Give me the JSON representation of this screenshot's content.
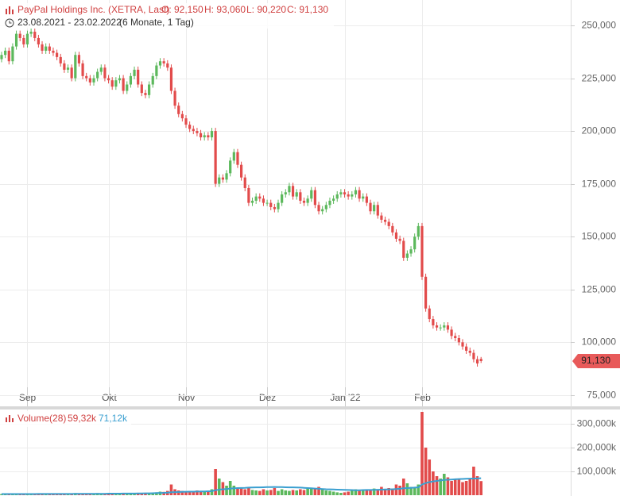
{
  "header": {
    "title": "PayPal Holdings Inc. (XETRA, Last)",
    "open": "O: 92,150",
    "high": "H: 93,060",
    "low": "L: 90,220",
    "close": "C: 91,130",
    "range": "23.08.2021 - 23.02.2022",
    "period": "(6 Monate, 1 Tag)"
  },
  "chart_data": [
    {
      "type": "candlestick",
      "categories": [
        null,
        null,
        null,
        null,
        null,
        null,
        null,
        "Sep",
        null,
        null,
        null,
        null,
        null,
        null,
        null,
        null,
        null,
        null,
        null,
        null,
        null,
        null,
        null,
        null,
        null,
        null,
        null,
        null,
        null,
        "Okt",
        null,
        null,
        null,
        null,
        null,
        null,
        null,
        null,
        null,
        null,
        null,
        null,
        null,
        null,
        null,
        null,
        null,
        null,
        null,
        null,
        "Nov",
        null,
        null,
        null,
        null,
        null,
        null,
        null,
        null,
        null,
        null,
        null,
        null,
        null,
        null,
        null,
        null,
        null,
        null,
        null,
        null,
        null,
        "Dez",
        null,
        null,
        null,
        null,
        null,
        null,
        null,
        null,
        null,
        null,
        null,
        null,
        null,
        null,
        null,
        null,
        null,
        null,
        null,
        null,
        "Jan '22",
        null,
        null,
        null,
        null,
        null,
        null,
        null,
        null,
        null,
        null,
        null,
        null,
        null,
        null,
        null,
        null,
        null,
        null,
        null,
        null,
        "Feb",
        null,
        null,
        null,
        null,
        null,
        null,
        null,
        null,
        null,
        null,
        null,
        null,
        null,
        null,
        null,
        null
      ],
      "open": [
        234,
        236,
        238,
        233,
        240,
        246,
        244,
        241,
        246,
        247,
        244,
        241,
        238,
        240,
        238,
        237,
        235,
        232,
        229,
        230,
        225,
        236,
        232,
        226,
        225,
        223,
        225,
        228,
        230,
        225,
        224,
        221,
        224,
        225,
        219,
        222,
        226,
        229,
        222,
        218,
        217,
        222,
        226,
        231,
        233,
        232,
        230,
        219,
        212,
        208,
        206,
        203,
        201,
        200,
        199,
        197,
        198,
        197,
        200,
        175,
        178,
        177,
        180,
        186,
        190,
        184,
        178,
        173,
        166,
        167,
        169,
        168,
        166,
        166,
        164,
        163,
        166,
        170,
        171,
        174,
        169,
        171,
        167,
        166,
        168,
        172,
        165,
        162,
        163,
        165,
        167,
        168,
        170,
        171,
        170,
        169,
        170,
        172,
        168,
        169,
        166,
        162,
        165,
        160,
        158,
        157,
        155,
        152,
        149,
        148,
        140,
        142,
        144,
        150,
        155,
        131,
        116,
        111,
        108,
        107,
        107,
        108,
        106,
        103,
        102,
        100,
        98,
        96,
        95,
        92,
        92.15
      ],
      "high": [
        237.5,
        239.5,
        239.5,
        241.5,
        247.5,
        247.5,
        245.5,
        247.5,
        248.5,
        248.5,
        245.5,
        242.5,
        241.5,
        241.5,
        239.5,
        238.5,
        236.5,
        233.5,
        231.5,
        231.5,
        237.5,
        237.5,
        233.5,
        227.5,
        226.5,
        226.5,
        229.5,
        231.5,
        231.5,
        226.5,
        225.5,
        225.5,
        226.5,
        226.5,
        223.5,
        227.5,
        230.5,
        230.5,
        223.5,
        219.5,
        223.5,
        227.5,
        232.5,
        234.5,
        234.5,
        233.5,
        231.5,
        220.5,
        213.5,
        209.5,
        207.5,
        204.5,
        202.5,
        201.5,
        200.5,
        199.5,
        199.5,
        201.5,
        201.5,
        179.5,
        179.5,
        181.5,
        187.5,
        191.5,
        191.5,
        185.5,
        179.5,
        174.5,
        168.5,
        170.5,
        170.5,
        169.5,
        167.5,
        167.5,
        165.5,
        167.5,
        171.5,
        172.5,
        175.5,
        175.5,
        172.5,
        172.5,
        168.5,
        169.5,
        173.5,
        173.5,
        166.5,
        164.5,
        166.5,
        168.5,
        169.5,
        171.5,
        172.5,
        172.5,
        171.5,
        171.5,
        173.5,
        173.5,
        170.5,
        170.5,
        167.5,
        166.5,
        166.5,
        161.5,
        159.5,
        158.5,
        156.5,
        153.5,
        150.5,
        149.5,
        143.5,
        145.5,
        151.5,
        156.5,
        156.5,
        132.5,
        117.5,
        112.5,
        109.5,
        108.5,
        109.5,
        109.5,
        107.5,
        104.5,
        103.5,
        101.5,
        99.5,
        97.5,
        96.5,
        93.5,
        93.06
      ],
      "low": [
        232.5,
        234.5,
        231.5,
        231.5,
        238.5,
        242.5,
        239.5,
        239.5,
        244.5,
        242.5,
        239.5,
        236.5,
        236.5,
        236.5,
        235.5,
        233.5,
        230.5,
        227.5,
        227.5,
        223.5,
        223.5,
        230.5,
        224.5,
        223.5,
        221.5,
        221.5,
        223.5,
        226.5,
        223.5,
        222.5,
        219.5,
        219.5,
        222.5,
        217.5,
        217.5,
        220.5,
        224.5,
        220.5,
        216.5,
        215.5,
        215.5,
        220.5,
        224.5,
        229.5,
        230.5,
        228.5,
        217.5,
        210.5,
        206.5,
        204.5,
        201.5,
        199.5,
        198.5,
        197.5,
        195.5,
        195.5,
        195.5,
        195.5,
        173.5,
        173.5,
        175.5,
        175.5,
        178.5,
        184.5,
        182.5,
        176.5,
        171.5,
        164.5,
        164.5,
        165.5,
        166.5,
        164.5,
        164.5,
        162.5,
        161.5,
        161.5,
        164.5,
        168.5,
        169.5,
        167.5,
        167.5,
        165.5,
        164.5,
        164.5,
        166.5,
        163.5,
        160.5,
        160.5,
        161.5,
        163.5,
        165.5,
        166.5,
        168.5,
        168.5,
        167.5,
        167.5,
        168.5,
        166.5,
        166.5,
        164.5,
        160.5,
        160.5,
        158.5,
        156.5,
        155.5,
        153.5,
        150.5,
        147.5,
        146.5,
        138.5,
        138.5,
        140.5,
        142.5,
        148.5,
        129.5,
        114.5,
        109.5,
        106.5,
        105.5,
        105.5,
        105.5,
        104.5,
        101.5,
        100.5,
        98.5,
        96.5,
        94.5,
        93.5,
        90.5,
        88.5,
        90.22
      ],
      "close": [
        236,
        238,
        233,
        240,
        246,
        244,
        241,
        246,
        247,
        244,
        241,
        238,
        240,
        238,
        237,
        235,
        232,
        229,
        230,
        225,
        236,
        232,
        226,
        225,
        223,
        225,
        228,
        230,
        225,
        224,
        221,
        224,
        225,
        219,
        222,
        226,
        229,
        222,
        218,
        217,
        222,
        226,
        231,
        233,
        232,
        230,
        219,
        212,
        208,
        206,
        203,
        201,
        200,
        199,
        197,
        198,
        197,
        200,
        175,
        178,
        177,
        180,
        186,
        190,
        184,
        178,
        173,
        166,
        167,
        169,
        168,
        166,
        166,
        164,
        163,
        166,
        170,
        171,
        174,
        169,
        171,
        167,
        166,
        168,
        172,
        165,
        162,
        163,
        165,
        167,
        168,
        170,
        171,
        170,
        169,
        170,
        172,
        168,
        169,
        166,
        162,
        165,
        160,
        158,
        157,
        155,
        152,
        149,
        148,
        140,
        142,
        144,
        150,
        155,
        131,
        116,
        111,
        108,
        107,
        107,
        108,
        106,
        103,
        102,
        100,
        98,
        96,
        95,
        92,
        90,
        91.13
      ],
      "up_color": "#5cb85c",
      "down_color": "#e24b4b",
      "ylim": [
        69.7,
        262
      ],
      "yticks": [
        {
          "value": 75,
          "label": "75,000"
        },
        {
          "value": 100,
          "label": "100,000"
        },
        {
          "value": 125,
          "label": "125,000"
        },
        {
          "value": 150,
          "label": "150,000"
        },
        {
          "value": 175,
          "label": "175,000"
        },
        {
          "value": 200,
          "label": "200,000"
        },
        {
          "value": 225,
          "label": "225,000"
        },
        {
          "value": 250,
          "label": "250,000"
        }
      ],
      "grid": true,
      "last_label": "91,130",
      "last_color": "#e85a5a"
    },
    {
      "type": "bar",
      "title": "Volume(28)",
      "values": [
        5,
        4,
        6,
        5,
        4,
        3,
        5,
        6,
        4,
        5,
        5,
        6,
        4,
        5,
        5,
        6,
        7,
        5,
        8,
        6,
        9,
        7,
        6,
        5,
        6,
        8,
        9,
        7,
        6,
        6,
        7,
        5,
        6,
        8,
        7,
        6,
        5,
        7,
        9,
        10,
        8,
        9,
        12,
        15,
        14,
        18,
        45,
        25,
        20,
        18,
        16,
        15,
        14,
        20,
        18,
        16,
        15,
        25,
        110,
        70,
        55,
        40,
        60,
        40,
        30,
        28,
        25,
        35,
        22,
        20,
        18,
        25,
        20,
        22,
        30,
        18,
        25,
        20,
        18,
        22,
        20,
        25,
        22,
        30,
        28,
        25,
        35,
        25,
        20,
        18,
        15,
        12,
        10,
        12,
        15,
        20,
        25,
        18,
        22,
        20,
        25,
        28,
        22,
        35,
        25,
        30,
        28,
        45,
        40,
        70,
        50,
        35,
        30,
        45,
        350,
        200,
        150,
        100,
        80,
        70,
        90,
        75,
        60,
        70,
        65,
        55,
        60,
        70,
        120,
        80,
        59.32
      ],
      "last_value_label": "59,32k",
      "ma_values": [
        5,
        5,
        5,
        5,
        5,
        5,
        5,
        5,
        5,
        5,
        5.5,
        5.5,
        5.5,
        5.5,
        5.5,
        5.5,
        5.5,
        5.5,
        5.5,
        5.5,
        6,
        6,
        6,
        6,
        6,
        6,
        6,
        6,
        6,
        6.5,
        6.5,
        6.5,
        6.5,
        7,
        7,
        7,
        7,
        7.5,
        7.5,
        8,
        8,
        8.5,
        9,
        9.5,
        10,
        11,
        12.5,
        13,
        13.5,
        14,
        14.5,
        15,
        15,
        15.5,
        16,
        16,
        16.5,
        17,
        21,
        23.5,
        25,
        26,
        28,
        29,
        30,
        30.5,
        31,
        32,
        32.5,
        33,
        33,
        33.5,
        34,
        34,
        34.5,
        34,
        34,
        33.5,
        33,
        33,
        32.5,
        32,
        31,
        30,
        29,
        28,
        27,
        26,
        25,
        24.5,
        24,
        23.5,
        23,
        22.5,
        22,
        21.5,
        21,
        21,
        21.5,
        22,
        22,
        22.5,
        23,
        23.5,
        24,
        24.5,
        25,
        26,
        27,
        29,
        30,
        31,
        32,
        33,
        45,
        51,
        55,
        58,
        60,
        62,
        64,
        65,
        66,
        67,
        68,
        68.5,
        69,
        69.5,
        70,
        70.5,
        71.12
      ],
      "ma_label": "71,12k",
      "ma_color": "#3a9fd0",
      "ylim": [
        0,
        360
      ],
      "yticks": [
        {
          "value": 100,
          "label": "100,000k"
        },
        {
          "value": 200,
          "label": "200,000k"
        },
        {
          "value": 300,
          "label": "300,000k"
        }
      ]
    }
  ]
}
